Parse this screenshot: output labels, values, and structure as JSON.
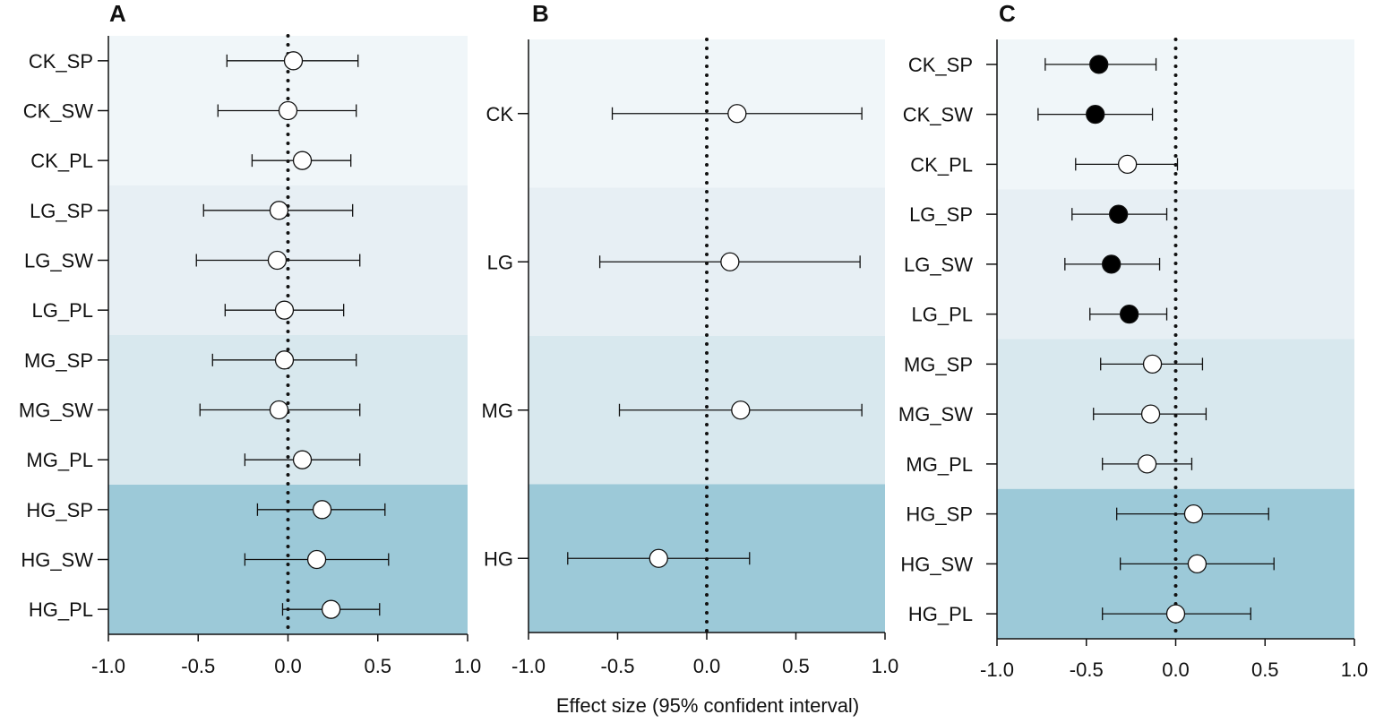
{
  "xlabel": "Effect size (95% confident interval)",
  "colors": {
    "band1": "#f0f6f9",
    "band2": "#e7eff4",
    "band3": "#d8e8ee",
    "band4": "#9cc9d8",
    "ink": "#111111",
    "open_marker": "#ffffff",
    "filled_marker": "#000000"
  },
  "chart_data": [
    {
      "panel": "A",
      "type": "forest",
      "xlim": [
        -1.0,
        1.0
      ],
      "xticks": [
        "-1.0",
        "-0.5",
        "0.0",
        "0.5",
        "1.0"
      ],
      "reference_line": 0.0,
      "categories": [
        "CK_SP",
        "CK_SW",
        "CK_PL",
        "LG_SP",
        "LG_SW",
        "LG_PL",
        "MG_SP",
        "MG_SW",
        "MG_PL",
        "HG_SP",
        "HG_SW",
        "HG_PL"
      ],
      "groups": [
        {
          "name": "CK",
          "size": 3
        },
        {
          "name": "LG",
          "size": 3
        },
        {
          "name": "MG",
          "size": 3
        },
        {
          "name": "HG",
          "size": 3
        }
      ],
      "estimates": [
        0.03,
        0.0,
        0.08,
        -0.05,
        -0.06,
        -0.02,
        -0.02,
        -0.05,
        0.08,
        0.19,
        0.16,
        0.24
      ],
      "lower": [
        -0.34,
        -0.39,
        -0.2,
        -0.47,
        -0.51,
        -0.35,
        -0.42,
        -0.49,
        -0.24,
        -0.17,
        -0.24,
        -0.03
      ],
      "upper": [
        0.39,
        0.38,
        0.35,
        0.36,
        0.4,
        0.31,
        0.38,
        0.4,
        0.4,
        0.54,
        0.56,
        0.51
      ],
      "significant": [
        false,
        false,
        false,
        false,
        false,
        false,
        false,
        false,
        false,
        false,
        false,
        false
      ]
    },
    {
      "panel": "B",
      "type": "forest",
      "xlim": [
        -1.0,
        1.0
      ],
      "xticks": [
        "-1.0",
        "-0.5",
        "0.0",
        "0.5",
        "1.0"
      ],
      "reference_line": 0.0,
      "categories": [
        "CK",
        "LG",
        "MG",
        "HG"
      ],
      "groups": [
        {
          "name": "CK",
          "size": 1
        },
        {
          "name": "LG",
          "size": 1
        },
        {
          "name": "MG",
          "size": 1
        },
        {
          "name": "HG",
          "size": 1
        }
      ],
      "estimates": [
        0.17,
        0.13,
        0.19,
        -0.27
      ],
      "lower": [
        -0.53,
        -0.6,
        -0.49,
        -0.78
      ],
      "upper": [
        0.87,
        0.86,
        0.87,
        0.24
      ],
      "significant": [
        false,
        false,
        false,
        false
      ]
    },
    {
      "panel": "C",
      "type": "forest",
      "xlim": [
        -1.0,
        1.0
      ],
      "xticks": [
        "-1.0",
        "-0.5",
        "0.0",
        "0.5",
        "1.0"
      ],
      "reference_line": 0.0,
      "categories": [
        "CK_SP",
        "CK_SW",
        "CK_PL",
        "LG_SP",
        "LG_SW",
        "LG_PL",
        "MG_SP",
        "MG_SW",
        "MG_PL",
        "HG_SP",
        "HG_SW",
        "HG_PL"
      ],
      "groups": [
        {
          "name": "CK",
          "size": 3
        },
        {
          "name": "LG",
          "size": 3
        },
        {
          "name": "MG",
          "size": 3
        },
        {
          "name": "HG",
          "size": 3
        }
      ],
      "estimates": [
        -0.43,
        -0.45,
        -0.27,
        -0.32,
        -0.36,
        -0.26,
        -0.13,
        -0.14,
        -0.16,
        0.1,
        0.12,
        0.0
      ],
      "lower": [
        -0.73,
        -0.77,
        -0.56,
        -0.58,
        -0.62,
        -0.48,
        -0.42,
        -0.46,
        -0.41,
        -0.33,
        -0.31,
        -0.41
      ],
      "upper": [
        -0.11,
        -0.13,
        0.01,
        -0.05,
        -0.09,
        -0.05,
        0.15,
        0.17,
        0.09,
        0.52,
        0.55,
        0.42
      ],
      "significant": [
        true,
        true,
        false,
        true,
        true,
        true,
        false,
        false,
        false,
        false,
        false,
        false
      ]
    }
  ]
}
